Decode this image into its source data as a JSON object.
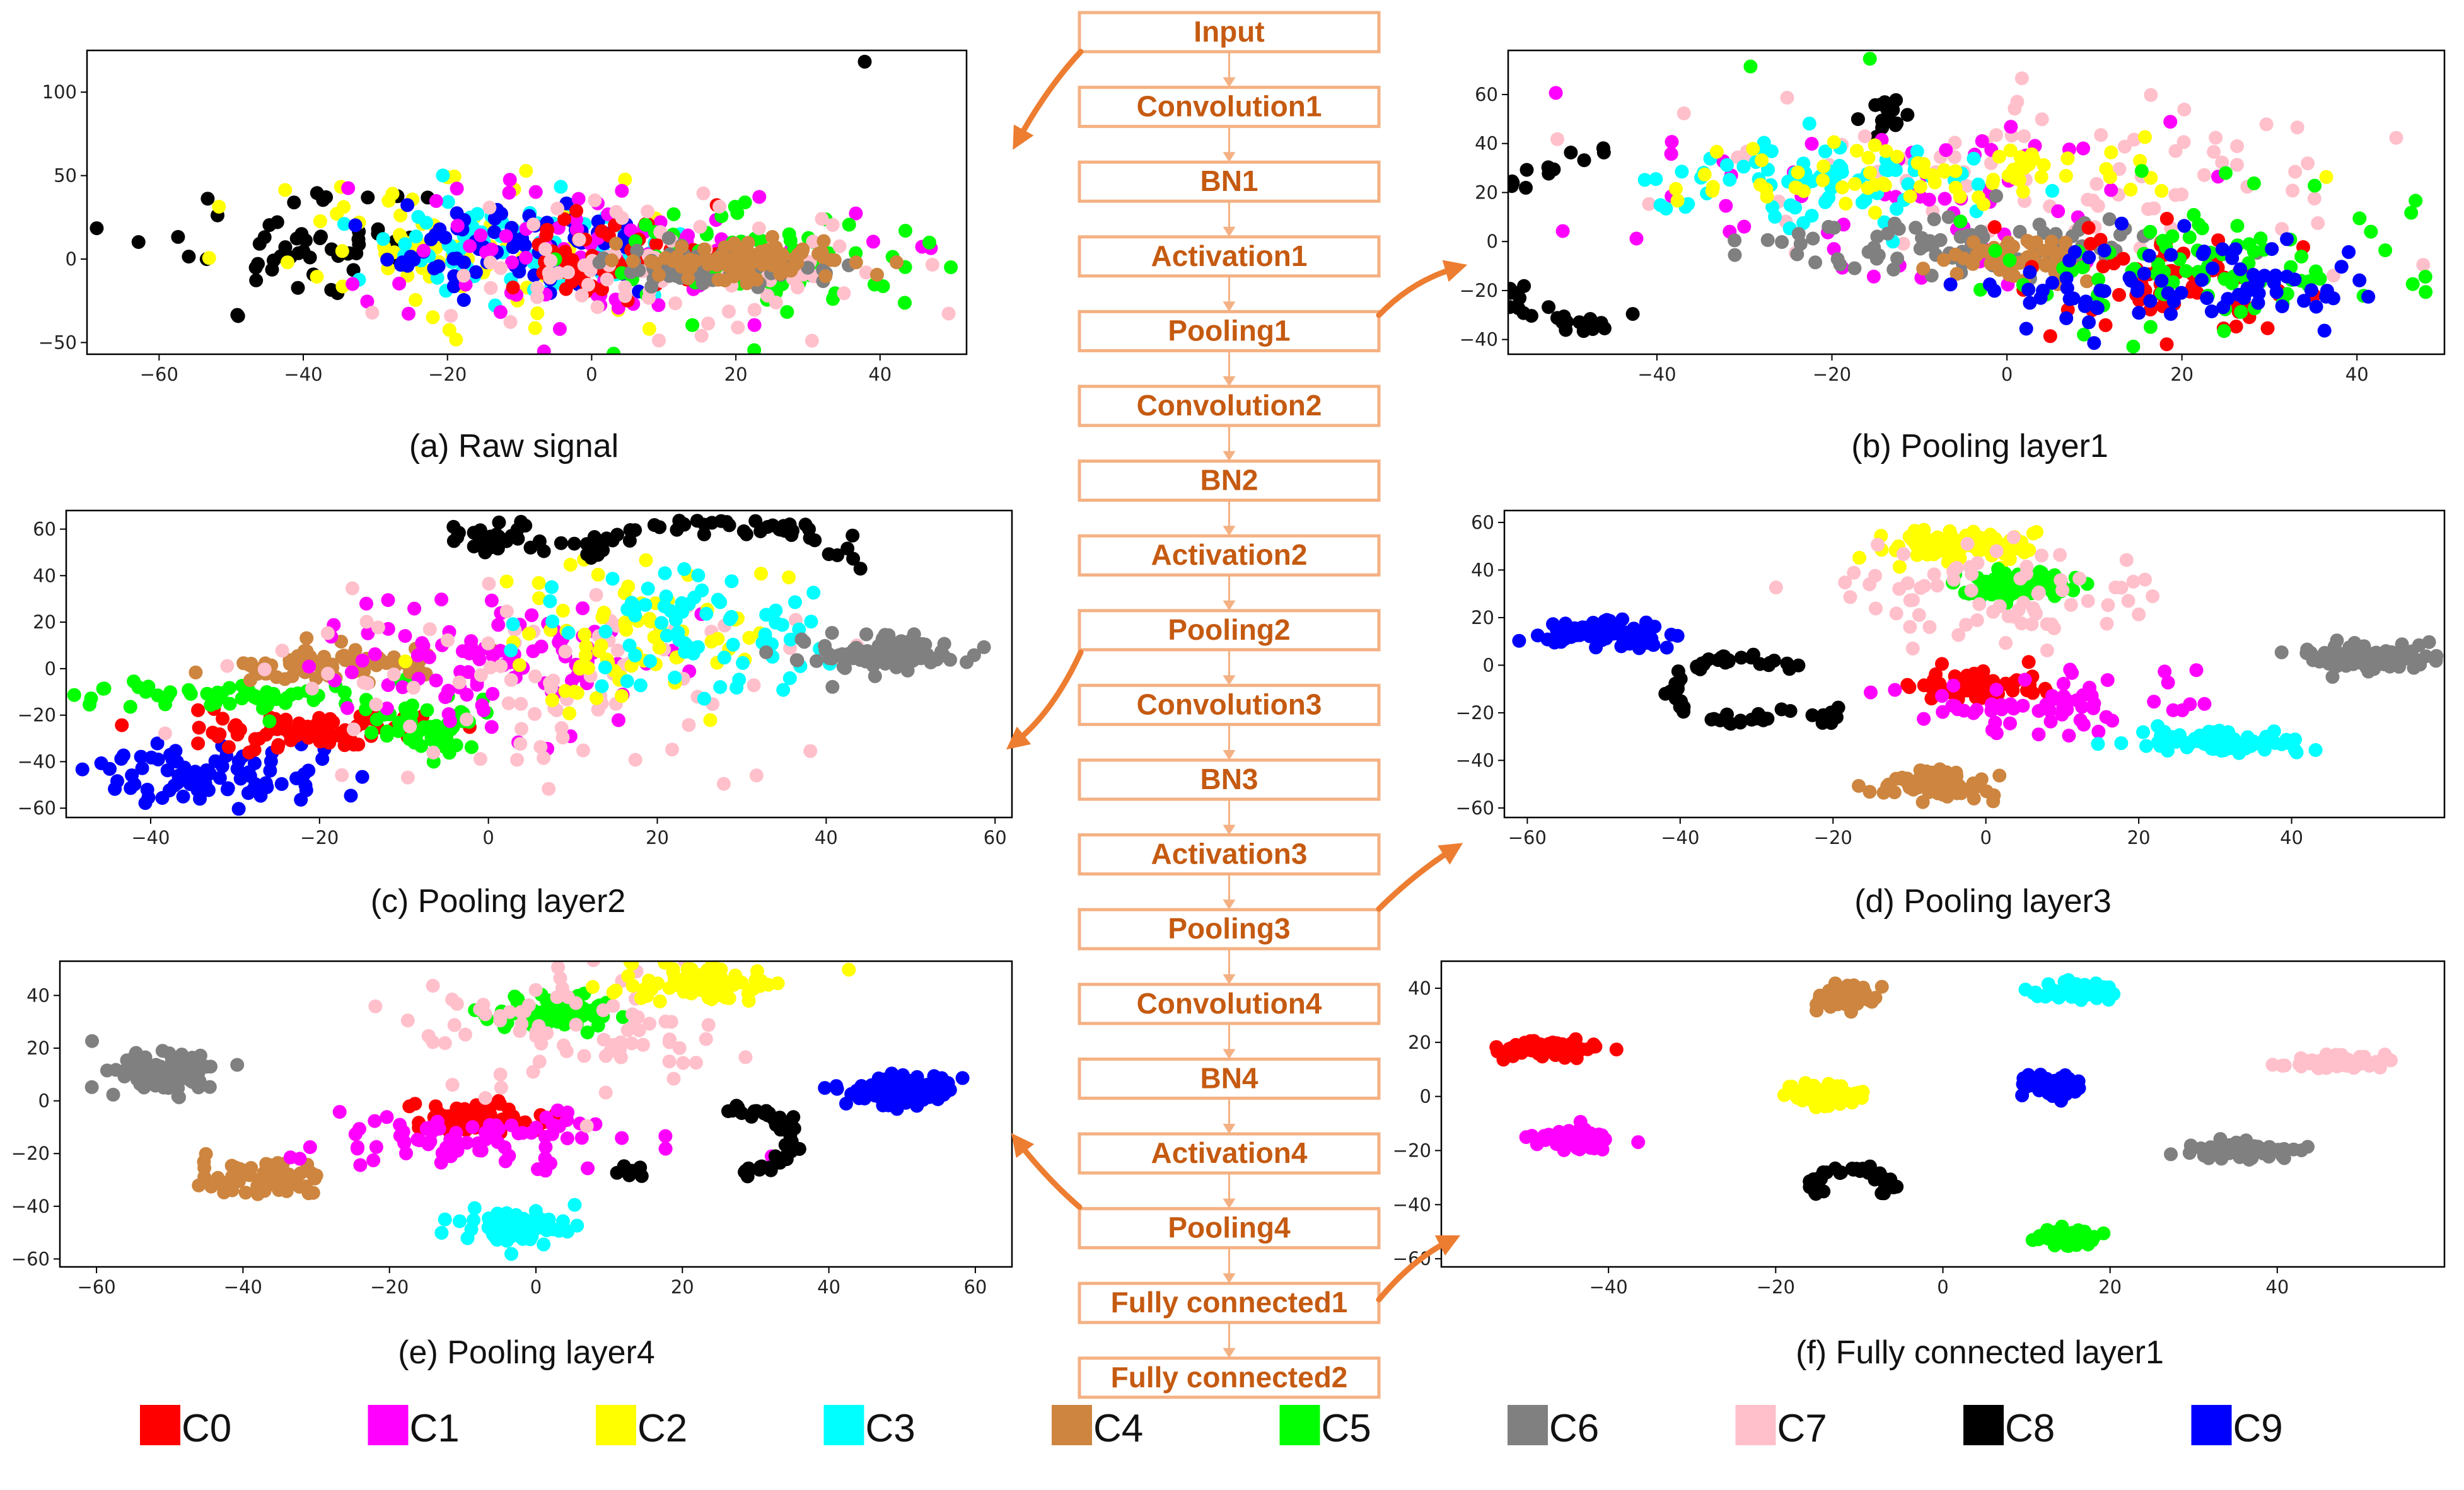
{
  "figure": {
    "flow": {
      "stages": [
        "Input",
        "Convolution1",
        "BN1",
        "Activation1",
        "Pooling1",
        "Convolution2",
        "BN2",
        "Activation2",
        "Pooling2",
        "Convolution3",
        "BN3",
        "Activation3",
        "Pooling3",
        "Convolution4",
        "BN4",
        "Activation4",
        "Pooling4",
        "Fully connected1",
        "Fully connected2"
      ],
      "box_color": "#F4B183",
      "text_color": "#C55A11",
      "arrow_color": "#F4B183",
      "link_arrow_color": "#ED7D31"
    },
    "legend": [
      {
        "label": "C0",
        "color": "#FF0000"
      },
      {
        "label": "C1",
        "color": "#FF00FF"
      },
      {
        "label": "C2",
        "color": "#FFFF00"
      },
      {
        "label": "C3",
        "color": "#00FFFF"
      },
      {
        "label": "C4",
        "color": "#CD853F"
      },
      {
        "label": "C5",
        "color": "#00FF00"
      },
      {
        "label": "C6",
        "color": "#808080"
      },
      {
        "label": "C7",
        "color": "#FFC0CB"
      },
      {
        "label": "C8",
        "color": "#000000"
      },
      {
        "label": "C9",
        "color": "#0000FF"
      }
    ]
  },
  "chart_data": [
    {
      "type": "scatter",
      "title": "(a) Raw signal",
      "source_stage": "Input",
      "xlim": [
        -70,
        52
      ],
      "ylim": [
        -57,
        125
      ],
      "xticks": [
        -60,
        -40,
        -20,
        0,
        20,
        40
      ],
      "yticks": [
        -50,
        0,
        50,
        100
      ],
      "clusters": [
        {
          "class": "C8",
          "shape": "blob",
          "cx": -40,
          "cy": 5,
          "sx": 10,
          "sy": 18,
          "n": 55,
          "seed": 11
        },
        {
          "class": "C2",
          "shape": "blob",
          "cx": -18,
          "cy": 10,
          "sx": 14,
          "sy": 22,
          "n": 85,
          "seed": 12
        },
        {
          "class": "C3",
          "shape": "blob",
          "cx": -10,
          "cy": 10,
          "sx": 10,
          "sy": 16,
          "n": 70,
          "seed": 13
        },
        {
          "class": "C9",
          "shape": "blob",
          "cx": -10,
          "cy": 5,
          "sx": 10,
          "sy": 14,
          "n": 85,
          "seed": 14
        },
        {
          "class": "C1",
          "shape": "blob",
          "cx": 5,
          "cy": 5,
          "sx": 16,
          "sy": 22,
          "n": 85,
          "seed": 15
        },
        {
          "class": "C0",
          "shape": "blob",
          "cx": 5,
          "cy": 3,
          "sx": 8,
          "sy": 12,
          "n": 60,
          "seed": 16
        },
        {
          "class": "C5",
          "shape": "blob",
          "cx": 25,
          "cy": 0,
          "sx": 12,
          "sy": 16,
          "n": 75,
          "seed": 17
        },
        {
          "class": "C7",
          "shape": "blob",
          "cx": 12,
          "cy": -5,
          "sx": 16,
          "sy": 20,
          "n": 85,
          "seed": 18
        },
        {
          "class": "C6",
          "shape": "blob",
          "cx": 15,
          "cy": -5,
          "sx": 8,
          "sy": 6,
          "n": 70,
          "seed": 19
        },
        {
          "class": "C4",
          "shape": "blob",
          "cx": 20,
          "cy": -2,
          "sx": 8,
          "sy": 6,
          "n": 95,
          "seed": 20
        },
        {
          "class": "C8",
          "shape": "blob",
          "cx": 38,
          "cy": 118,
          "sx": 0.3,
          "sy": 0.3,
          "n": 1,
          "seed": 21
        },
        {
          "class": "C5",
          "shape": "blob",
          "cx": 3,
          "cy": -57,
          "sx": 0.3,
          "sy": 0.3,
          "n": 1,
          "seed": 22
        }
      ]
    },
    {
      "type": "scatter",
      "title": "(b) Pooling layer1",
      "source_stage": "Pooling1",
      "xlim": [
        -57,
        50
      ],
      "ylim": [
        -46,
        78
      ],
      "xticks": [
        -40,
        -20,
        0,
        20,
        40
      ],
      "yticks": [
        -40,
        -20,
        0,
        20,
        40,
        60
      ],
      "clusters": [
        {
          "class": "C8",
          "shape": "arc",
          "cx": -44,
          "cy": 0,
          "r": 18,
          "a0": 95,
          "a1": 275,
          "ryScale": 1.9,
          "w": 1.2,
          "n": 80,
          "seed": 31
        },
        {
          "class": "C8",
          "shape": "blob",
          "cx": -14,
          "cy": 52,
          "sx": 3,
          "sy": 3,
          "n": 14,
          "seed": 32
        },
        {
          "class": "C7",
          "shape": "blob",
          "cx": 5,
          "cy": 25,
          "sx": 22,
          "sy": 20,
          "n": 90,
          "seed": 33
        },
        {
          "class": "C1",
          "shape": "blob",
          "cx": -10,
          "cy": 15,
          "sx": 18,
          "sy": 20,
          "n": 60,
          "seed": 34
        },
        {
          "class": "C3",
          "shape": "blob",
          "cx": -22,
          "cy": 25,
          "sx": 9,
          "sy": 10,
          "n": 75,
          "seed": 35
        },
        {
          "class": "C2",
          "shape": "blob",
          "cx": -8,
          "cy": 28,
          "sx": 14,
          "sy": 8,
          "n": 75,
          "seed": 36
        },
        {
          "class": "C6",
          "shape": "blob",
          "cx": -4,
          "cy": -2,
          "sx": 13,
          "sy": 6,
          "n": 95,
          "seed": 37
        },
        {
          "class": "C4",
          "shape": "blob",
          "cx": 2,
          "cy": -6,
          "sx": 4,
          "sy": 5,
          "n": 55,
          "seed": 38
        },
        {
          "class": "C0",
          "shape": "blob",
          "cx": 18,
          "cy": -15,
          "sx": 9,
          "sy": 10,
          "n": 70,
          "seed": 39
        },
        {
          "class": "C5",
          "shape": "blob",
          "cx": 22,
          "cy": -10,
          "sx": 12,
          "sy": 13,
          "n": 85,
          "seed": 40
        },
        {
          "class": "C9",
          "shape": "blob",
          "cx": 20,
          "cy": -20,
          "sx": 12,
          "sy": 10,
          "n": 85,
          "seed": 41
        },
        {
          "class": "C5",
          "shape": "blob",
          "cx": -29,
          "cy": 71,
          "sx": 0.3,
          "sy": 0.3,
          "n": 1,
          "seed": 42
        },
        {
          "class": "C5",
          "shape": "blob",
          "cx": -16,
          "cy": 74,
          "sx": 0.3,
          "sy": 0.3,
          "n": 1,
          "seed": 43
        },
        {
          "class": "C5",
          "shape": "blob",
          "cx": 47,
          "cy": 16,
          "sx": 0.3,
          "sy": 0.3,
          "n": 1,
          "seed": 44
        }
      ]
    },
    {
      "type": "scatter",
      "title": "(c) Pooling layer2",
      "source_stage": "Pooling2",
      "xlim": [
        -50,
        62
      ],
      "ylim": [
        -64,
        68
      ],
      "xticks": [
        -40,
        -20,
        0,
        20,
        40,
        60
      ],
      "yticks": [
        -60,
        -40,
        -20,
        0,
        20,
        40,
        60
      ],
      "clusters": [
        {
          "class": "C9",
          "shape": "blob",
          "cx": -33,
          "cy": -45,
          "sx": 7,
          "sy": 6,
          "n": 80,
          "seed": 51
        },
        {
          "class": "C0",
          "shape": "blob",
          "cx": -22,
          "cy": -27,
          "sx": 7,
          "sy": 4,
          "n": 80,
          "seed": 52
        },
        {
          "class": "C5",
          "shape": "blob",
          "cx": -28,
          "cy": -12,
          "sx": 10,
          "sy": 3,
          "n": 55,
          "seed": 53
        },
        {
          "class": "C5",
          "shape": "blob",
          "cx": -8,
          "cy": -28,
          "sx": 4,
          "sy": 7,
          "n": 45,
          "seed": 54
        },
        {
          "class": "C4",
          "shape": "blob",
          "cx": -18,
          "cy": 2,
          "sx": 7,
          "sy": 4,
          "n": 80,
          "seed": 55
        },
        {
          "class": "C1",
          "shape": "blob",
          "cx": 0,
          "cy": 5,
          "sx": 11,
          "sy": 14,
          "n": 95,
          "seed": 56
        },
        {
          "class": "C7",
          "shape": "blob",
          "cx": 10,
          "cy": -10,
          "sx": 15,
          "sy": 22,
          "n": 90,
          "seed": 57
        },
        {
          "class": "C2",
          "shape": "blob",
          "cx": 18,
          "cy": 10,
          "sx": 8,
          "sy": 16,
          "n": 75,
          "seed": 58
        },
        {
          "class": "C3",
          "shape": "blob",
          "cx": 22,
          "cy": 15,
          "sx": 9,
          "sy": 13,
          "n": 75,
          "seed": 59
        },
        {
          "class": "C8",
          "shape": "blob",
          "cx": 2,
          "cy": 55,
          "sx": 4,
          "sy": 4,
          "n": 28,
          "seed": 60
        },
        {
          "class": "C8",
          "shape": "arc",
          "cx": 27,
          "cy": 10,
          "r": 24,
          "a0": 40,
          "a1": 135,
          "ryScale": 2.2,
          "w": 1.1,
          "n": 55,
          "seed": 61
        },
        {
          "class": "C6",
          "shape": "blob",
          "cx": 47,
          "cy": 7,
          "sx": 5,
          "sy": 4,
          "n": 90,
          "seed": 62
        }
      ]
    },
    {
      "type": "scatter",
      "title": "(d) Pooling layer3",
      "source_stage": "Pooling3",
      "xlim": [
        -63,
        60
      ],
      "ylim": [
        -64,
        65
      ],
      "xticks": [
        -60,
        -40,
        -20,
        0,
        20,
        40
      ],
      "yticks": [
        -60,
        -40,
        -20,
        0,
        20,
        40,
        60
      ],
      "clusters": [
        {
          "class": "C9",
          "shape": "blob",
          "cx": -50,
          "cy": 14,
          "sx": 4,
          "sy": 3,
          "n": 85,
          "seed": 71
        },
        {
          "class": "C8",
          "shape": "arc",
          "cx": -32,
          "cy": -10,
          "r": 9,
          "a0": 40,
          "a1": 320,
          "ryScale": 1.4,
          "w": 0.8,
          "n": 55,
          "seed": 72
        },
        {
          "class": "C8",
          "shape": "blob",
          "cx": -21,
          "cy": -22,
          "sx": 1.5,
          "sy": 1.5,
          "n": 8,
          "seed": 73
        },
        {
          "class": "C2",
          "shape": "blob",
          "cx": -5,
          "cy": 50,
          "sx": 6,
          "sy": 3,
          "n": 80,
          "seed": 74
        },
        {
          "class": "C5",
          "shape": "blob",
          "cx": 4,
          "cy": 33,
          "sx": 4,
          "sy": 3,
          "n": 80,
          "seed": 75
        },
        {
          "class": "C7",
          "shape": "blob",
          "cx": 0,
          "cy": 30,
          "sx": 10,
          "sy": 10,
          "n": 75,
          "seed": 76
        },
        {
          "class": "C0",
          "shape": "blob",
          "cx": -2,
          "cy": -9,
          "sx": 4,
          "sy": 3,
          "n": 85,
          "seed": 77
        },
        {
          "class": "C1",
          "shape": "blob",
          "cx": 5,
          "cy": -18,
          "sx": 9,
          "sy": 6,
          "n": 65,
          "seed": 78
        },
        {
          "class": "C4",
          "shape": "blob",
          "cx": -7,
          "cy": -50,
          "sx": 4,
          "sy": 3,
          "n": 70,
          "seed": 79
        },
        {
          "class": "C3",
          "shape": "blob",
          "cx": 30,
          "cy": -32,
          "sx": 6,
          "sy": 2.5,
          "n": 85,
          "seed": 80
        },
        {
          "class": "C6",
          "shape": "blob",
          "cx": 50,
          "cy": 3,
          "sx": 4,
          "sy": 3,
          "n": 85,
          "seed": 81
        }
      ]
    },
    {
      "type": "scatter",
      "title": "(e) Pooling layer4",
      "source_stage": "Pooling4",
      "xlim": [
        -65,
        65
      ],
      "ylim": [
        -63,
        53
      ],
      "xticks": [
        -60,
        -40,
        -20,
        0,
        20,
        40,
        60
      ],
      "yticks": [
        -60,
        -40,
        -20,
        0,
        20,
        40
      ],
      "clusters": [
        {
          "class": "C6",
          "shape": "blob",
          "cx": -51,
          "cy": 11,
          "sx": 4,
          "sy": 4,
          "n": 85,
          "seed": 91
        },
        {
          "class": "C4",
          "shape": "blob",
          "cx": -37,
          "cy": -29,
          "sx": 4,
          "sy": 3,
          "n": 80,
          "seed": 92
        },
        {
          "class": "C0",
          "shape": "blob",
          "cx": -8,
          "cy": -7,
          "sx": 4,
          "sy": 3,
          "n": 85,
          "seed": 93
        },
        {
          "class": "C1",
          "shape": "blob",
          "cx": -8,
          "cy": -15,
          "sx": 11,
          "sy": 6,
          "n": 80,
          "seed": 94
        },
        {
          "class": "C5",
          "shape": "blob",
          "cx": 3,
          "cy": 34,
          "sx": 4,
          "sy": 3,
          "n": 80,
          "seed": 95
        },
        {
          "class": "C7",
          "shape": "blob",
          "cx": 5,
          "cy": 25,
          "sx": 11,
          "sy": 12,
          "n": 80,
          "seed": 96
        },
        {
          "class": "C2",
          "shape": "blob",
          "cx": 22,
          "cy": 45,
          "sx": 6,
          "sy": 3,
          "n": 80,
          "seed": 97
        },
        {
          "class": "C3",
          "shape": "blob",
          "cx": -3,
          "cy": -48,
          "sx": 4,
          "sy": 3,
          "n": 80,
          "seed": 98
        },
        {
          "class": "C8",
          "shape": "arc",
          "cx": 26,
          "cy": -15,
          "r": 9,
          "a0": -80,
          "a1": 90,
          "ryScale": 1.4,
          "w": 0.8,
          "n": 50,
          "seed": 99
        },
        {
          "class": "C8",
          "shape": "blob",
          "cx": 13,
          "cy": -27,
          "sx": 1.3,
          "sy": 1.3,
          "n": 8,
          "seed": 100
        },
        {
          "class": "C9",
          "shape": "blob",
          "cx": 51,
          "cy": 4,
          "sx": 4,
          "sy": 3,
          "n": 85,
          "seed": 101
        }
      ]
    },
    {
      "type": "scatter",
      "title": "(f) Fully connected layer1",
      "source_stage": "Fully connected1",
      "xlim": [
        -60,
        60
      ],
      "ylim": [
        -63,
        50
      ],
      "xticks": [
        -40,
        -20,
        0,
        20,
        40
      ],
      "yticks": [
        -60,
        -40,
        -20,
        0,
        20,
        40
      ],
      "clusters": [
        {
          "class": "C0",
          "shape": "blob",
          "cx": -48,
          "cy": 18,
          "sx": 3,
          "sy": 1.6,
          "n": 70,
          "seed": 111
        },
        {
          "class": "C1",
          "shape": "blob",
          "cx": -44,
          "cy": -16,
          "sx": 2.5,
          "sy": 1.8,
          "n": 70,
          "seed": 112
        },
        {
          "class": "C4",
          "shape": "blob",
          "cx": -12,
          "cy": 37,
          "sx": 1.5,
          "sy": 2.2,
          "n": 70,
          "seed": 113
        },
        {
          "class": "C2",
          "shape": "blob",
          "cx": -14,
          "cy": 1,
          "sx": 2,
          "sy": 2,
          "n": 70,
          "seed": 114
        },
        {
          "class": "C8",
          "shape": "arc",
          "cx": -11,
          "cy": -33,
          "r": 4.5,
          "a0": -30,
          "a1": 230,
          "ryScale": 1.4,
          "w": 0.5,
          "n": 55,
          "seed": 115
        },
        {
          "class": "C3",
          "shape": "blob",
          "cx": 16,
          "cy": 39,
          "sx": 2.2,
          "sy": 1.6,
          "n": 70,
          "seed": 116
        },
        {
          "class": "C9",
          "shape": "blob",
          "cx": 13,
          "cy": 4,
          "sx": 2,
          "sy": 2,
          "n": 70,
          "seed": 117
        },
        {
          "class": "C5",
          "shape": "blob",
          "cx": 15,
          "cy": -52,
          "sx": 1.6,
          "sy": 2,
          "n": 70,
          "seed": 118
        },
        {
          "class": "C6",
          "shape": "blob",
          "cx": 36,
          "cy": -20,
          "sx": 3,
          "sy": 1.4,
          "n": 70,
          "seed": 119
        },
        {
          "class": "C7",
          "shape": "blob",
          "cx": 47,
          "cy": 13,
          "sx": 3,
          "sy": 1.4,
          "n": 70,
          "seed": 120
        }
      ]
    }
  ]
}
